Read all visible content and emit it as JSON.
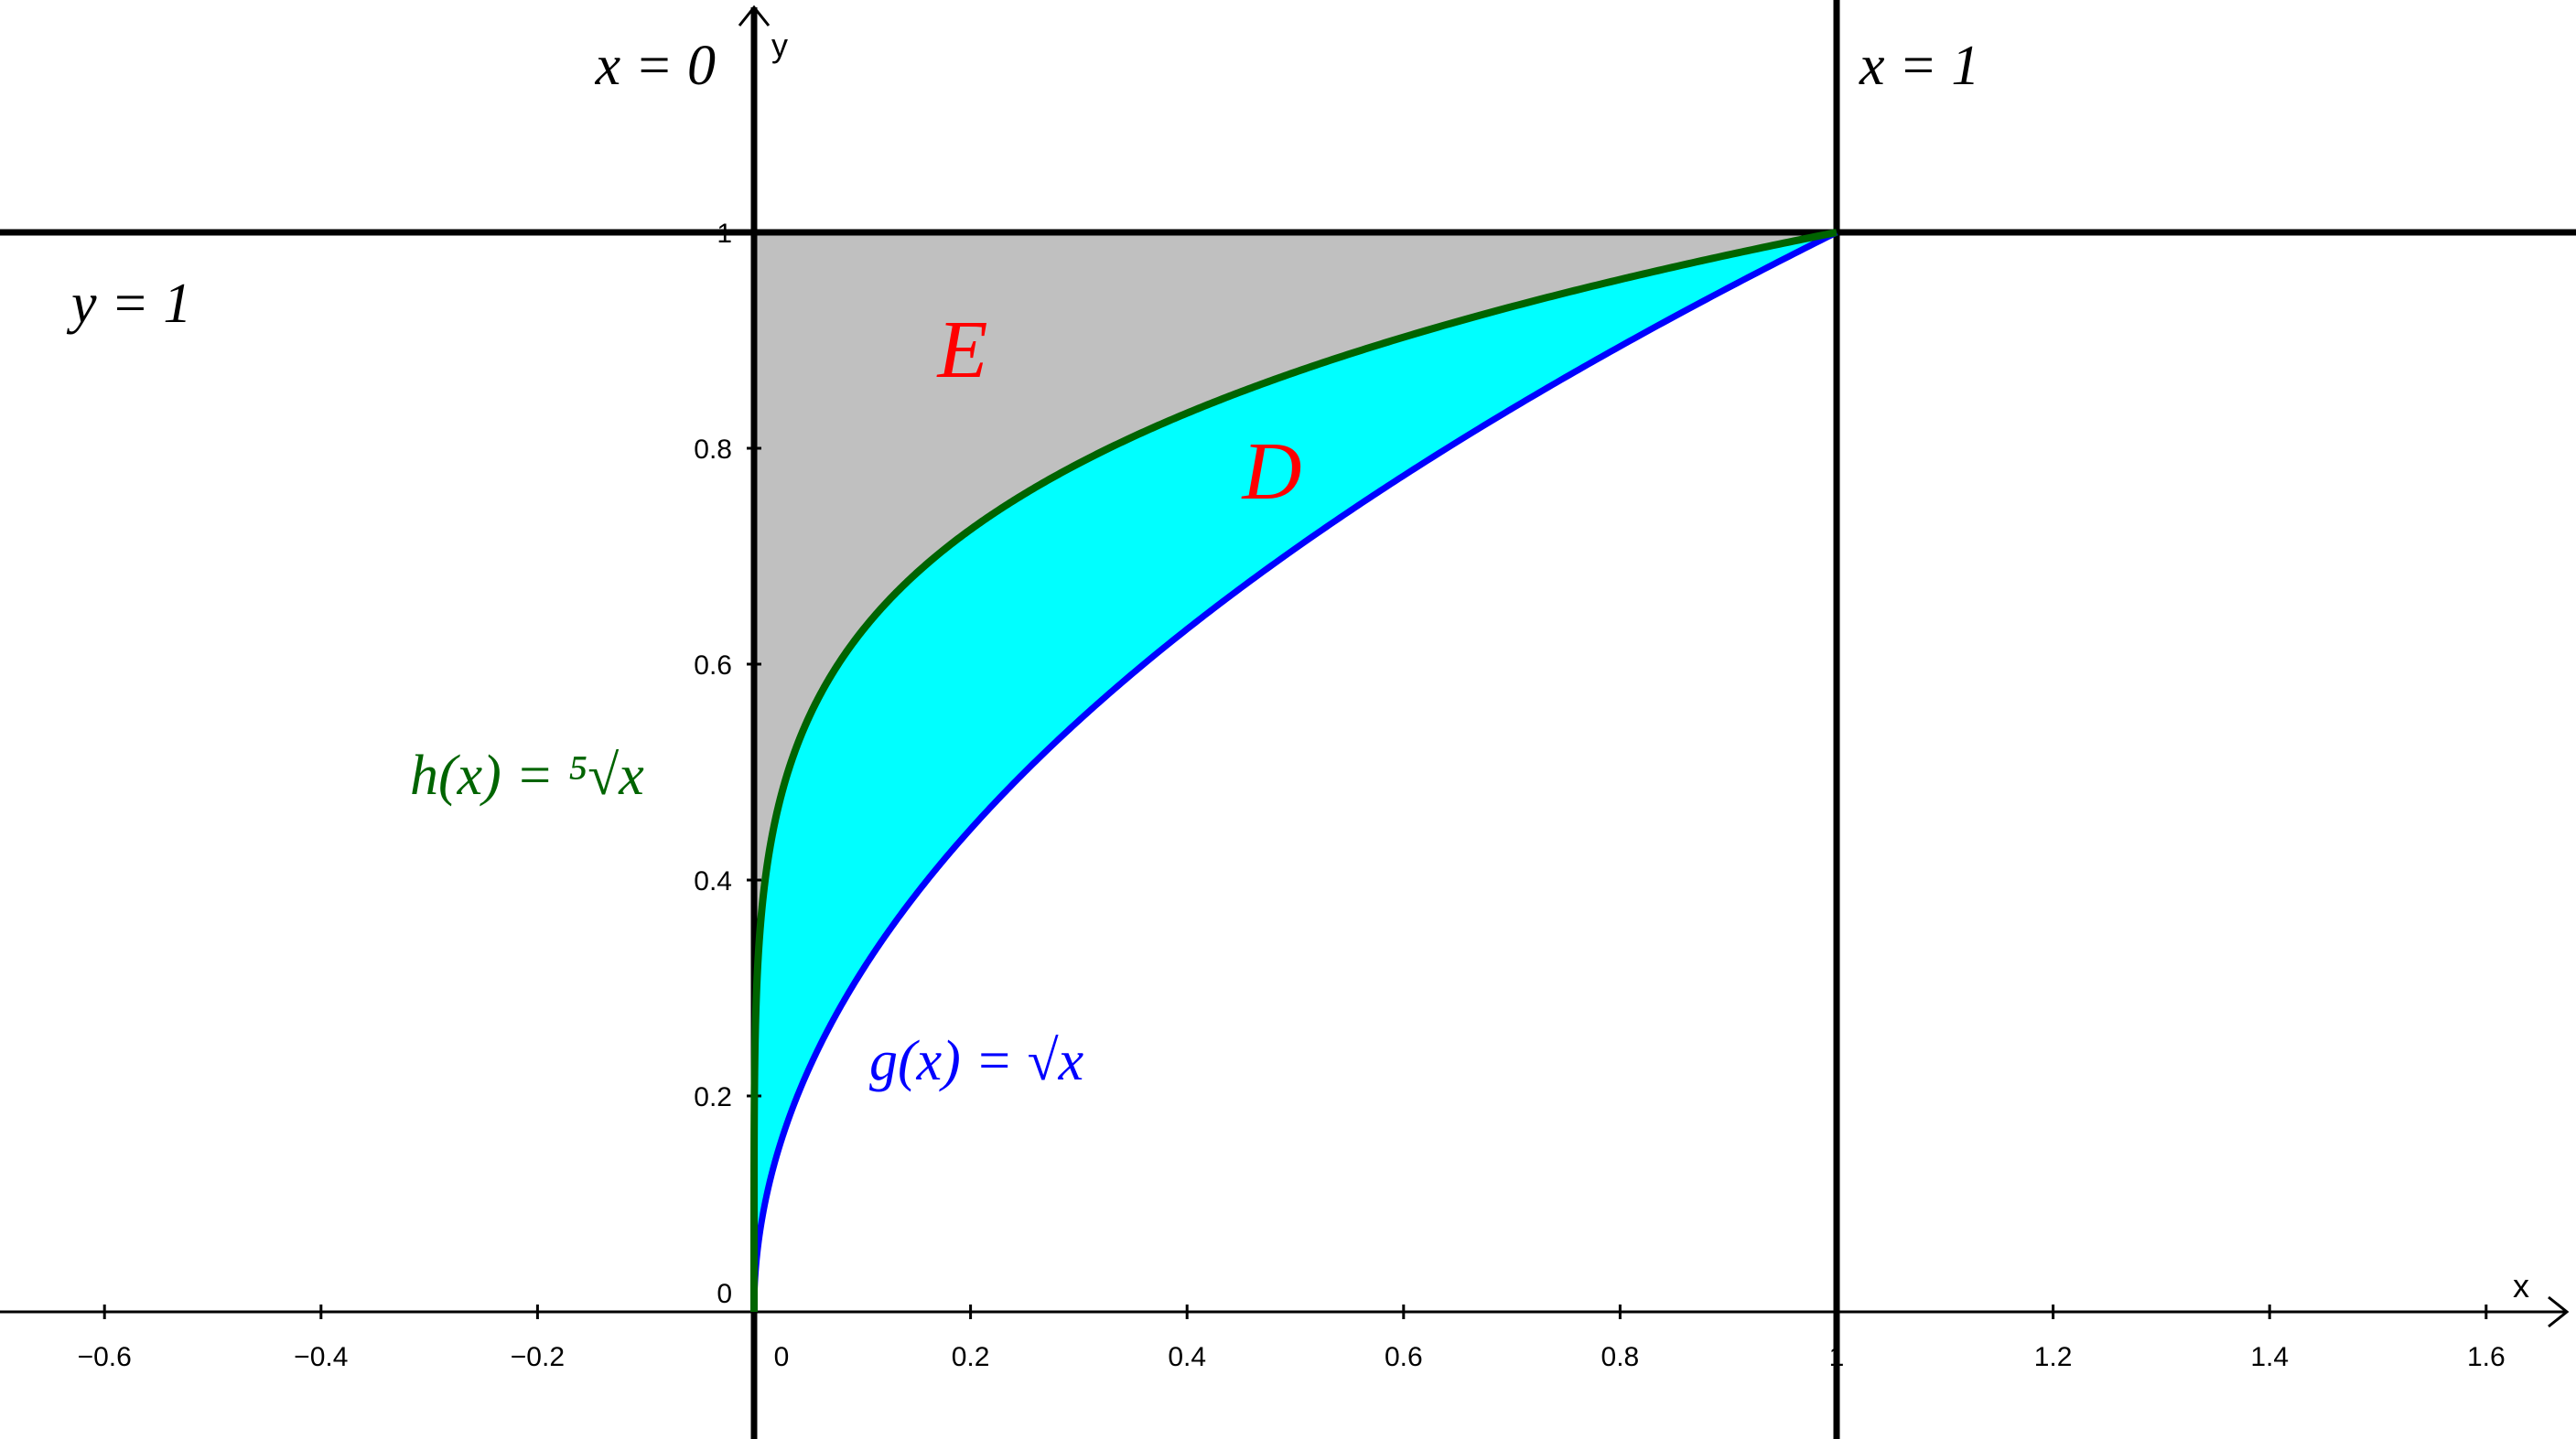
{
  "axes": {
    "x_label": "x",
    "y_label": "y",
    "xlim": [
      -0.7,
      1.6
    ],
    "ylim": [
      -0.12,
      1.22
    ],
    "x_ticks": [
      "−0.6",
      "−0.4",
      "−0.2",
      "0",
      "0.2",
      "0.4",
      "0.6",
      "0.8",
      "1",
      "1.2",
      "1.4",
      "1.6"
    ],
    "x_tick_values": [
      -0.6,
      -0.4,
      -0.2,
      0,
      0.2,
      0.4,
      0.6,
      0.8,
      1,
      1.2,
      1.4,
      1.6
    ],
    "y_ticks": [
      "0",
      "0.2",
      "0.4",
      "0.6",
      "0.8",
      "1"
    ],
    "y_tick_values": [
      0,
      0.2,
      0.4,
      0.6,
      0.8,
      1
    ],
    "grid": false
  },
  "lines": {
    "x0": {
      "label": "x = 0",
      "x": 0
    },
    "x1": {
      "label": "x = 1",
      "x": 1
    },
    "y1": {
      "label": "y = 1",
      "y": 1
    }
  },
  "functions": {
    "g": {
      "label": "g(x) = √x",
      "formula": "sqrt(x)",
      "color": "#0000ff"
    },
    "h": {
      "label": "h(x) = ⁵√x",
      "formula": "x^(1/5)",
      "color": "#006400"
    }
  },
  "regions": {
    "D": {
      "label": "D",
      "between": "g and h on [0, 1]",
      "fill": "#00ffff"
    },
    "E": {
      "label": "E",
      "between": "h and y = 1 on [0, 1]",
      "fill": "#c0c0c0"
    }
  },
  "colors": {
    "region_label": "#ff0000",
    "axes": "#000000"
  }
}
